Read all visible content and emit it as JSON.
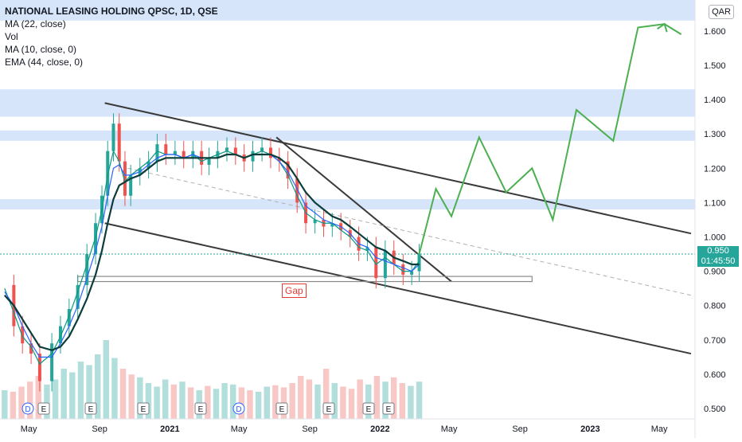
{
  "legend": {
    "title": "NATIONAL LEASING HOLDING QPSC, 1D, QSE",
    "items": [
      "MA (22, close)",
      "Vol",
      "MA (10, close, 0)",
      "EMA (44, close, 0)"
    ]
  },
  "currency": "QAR",
  "last_price": "0.950",
  "countdown": "01:45:50",
  "gap_label": "Gap",
  "event_markers": [
    "D",
    "E",
    "E",
    "E",
    "E",
    "D",
    "E",
    "E",
    "E",
    "E"
  ],
  "colors": {
    "up": "#26a69a",
    "down": "#ef5350",
    "ma22": "#2962ff",
    "ma10": "#089981",
    "ema44": "#0b3d3a",
    "trendline": "#3a3a3a",
    "projection": "#4caf50",
    "zone": "#cfe0f8",
    "price_line": "#26a69a",
    "gap": "#e53935"
  },
  "chart_data": {
    "type": "line",
    "title": "NATIONAL LEASING HOLDING QPSC, 1D, QSE",
    "xlabel": "",
    "ylabel": "QAR",
    "ylim": [
      0.47,
      1.69
    ],
    "x_ticks": [
      "May",
      "Sep",
      "2021",
      "May",
      "Sep",
      "2022",
      "May",
      "Sep",
      "2023",
      "May"
    ],
    "y_ticks": [
      "1.600",
      "1.500",
      "1.400",
      "1.300",
      "1.200",
      "1.100",
      "1.000",
      "0.900",
      "0.800",
      "0.700",
      "0.600",
      "0.500"
    ],
    "price_series": {
      "name": "Close",
      "x": [
        "2020-03-20",
        "2020-04-05",
        "2020-04-20",
        "2020-05-05",
        "2020-05-20",
        "2020-06-10",
        "2020-06-25",
        "2020-07-10",
        "2020-07-25",
        "2020-08-10",
        "2020-08-25",
        "2020-09-05",
        "2020-09-15",
        "2020-09-25",
        "2020-10-05",
        "2020-10-15",
        "2020-10-25",
        "2020-11-10",
        "2020-11-25",
        "2020-12-10",
        "2020-12-25",
        "2021-01-10",
        "2021-01-25",
        "2021-02-10",
        "2021-02-25",
        "2021-03-10",
        "2021-03-25",
        "2021-04-10",
        "2021-04-25",
        "2021-05-10",
        "2021-05-25",
        "2021-06-10",
        "2021-06-25",
        "2021-07-10",
        "2021-07-25",
        "2021-08-10",
        "2021-08-25",
        "2021-09-10",
        "2021-09-25",
        "2021-10-10",
        "2021-10-25",
        "2021-11-10",
        "2021-11-25",
        "2021-12-10",
        "2021-12-25",
        "2022-01-10",
        "2022-01-25",
        "2022-02-10",
        "2022-02-25",
        "2022-03-10"
      ],
      "y": [
        0.86,
        0.74,
        0.69,
        0.66,
        0.58,
        0.69,
        0.74,
        0.79,
        0.86,
        0.95,
        1.04,
        1.12,
        1.25,
        1.33,
        1.22,
        1.12,
        1.18,
        1.2,
        1.22,
        1.27,
        1.24,
        1.25,
        1.23,
        1.25,
        1.21,
        1.23,
        1.25,
        1.26,
        1.24,
        1.22,
        1.25,
        1.26,
        1.23,
        1.22,
        1.17,
        1.1,
        1.04,
        1.05,
        1.03,
        1.04,
        1.02,
        1.0,
        0.96,
        0.97,
        0.88,
        0.96,
        0.92,
        0.89,
        0.9,
        0.95
      ]
    },
    "ma10": {
      "name": "MA (10, close, 0)",
      "y": [
        0.85,
        0.78,
        0.71,
        0.68,
        0.63,
        0.66,
        0.71,
        0.77,
        0.84,
        0.92,
        1.0,
        1.08,
        1.18,
        1.25,
        1.22,
        1.16,
        1.18,
        1.2,
        1.22,
        1.25,
        1.24,
        1.24,
        1.23,
        1.24,
        1.22,
        1.23,
        1.24,
        1.25,
        1.24,
        1.23,
        1.24,
        1.25,
        1.24,
        1.22,
        1.18,
        1.12,
        1.07,
        1.05,
        1.04,
        1.04,
        1.02,
        1.0,
        0.97,
        0.96,
        0.92,
        0.94,
        0.92,
        0.9,
        0.9,
        0.93
      ]
    },
    "ma22": {
      "name": "MA (22, close)",
      "y": [
        0.84,
        0.8,
        0.74,
        0.69,
        0.65,
        0.65,
        0.69,
        0.74,
        0.8,
        0.88,
        0.96,
        1.03,
        1.12,
        1.2,
        1.21,
        1.18,
        1.18,
        1.19,
        1.21,
        1.23,
        1.24,
        1.24,
        1.23,
        1.24,
        1.23,
        1.23,
        1.23,
        1.24,
        1.24,
        1.23,
        1.24,
        1.24,
        1.24,
        1.22,
        1.19,
        1.14,
        1.09,
        1.07,
        1.05,
        1.04,
        1.03,
        1.01,
        0.98,
        0.97,
        0.94,
        0.93,
        0.92,
        0.91,
        0.9,
        0.92
      ]
    },
    "ema44": {
      "name": "EMA (44, close, 0)",
      "y": [
        0.83,
        0.8,
        0.76,
        0.72,
        0.68,
        0.67,
        0.68,
        0.71,
        0.76,
        0.82,
        0.89,
        0.96,
        1.04,
        1.11,
        1.15,
        1.16,
        1.17,
        1.18,
        1.2,
        1.22,
        1.23,
        1.23,
        1.23,
        1.23,
        1.23,
        1.23,
        1.23,
        1.24,
        1.24,
        1.23,
        1.24,
        1.24,
        1.24,
        1.23,
        1.21,
        1.17,
        1.13,
        1.1,
        1.08,
        1.06,
        1.05,
        1.03,
        1.01,
        0.99,
        0.97,
        0.96,
        0.94,
        0.93,
        0.92,
        0.92
      ]
    },
    "projection": {
      "name": "",
      "x": [
        "2022-03-10",
        "2022-04-08",
        "2022-05-05",
        "2022-06-22",
        "2022-08-08",
        "2022-09-22",
        "2022-10-28",
        "2022-12-08",
        "2023-02-10",
        "2023-03-25",
        "2023-05-10",
        "2023-06-08"
      ],
      "y": [
        0.95,
        1.14,
        1.06,
        1.29,
        1.13,
        1.2,
        1.05,
        1.37,
        1.28,
        1.61,
        1.62,
        1.59
      ]
    },
    "trendlines": [
      {
        "from": [
          "2020-09-10",
          1.39
        ],
        "to": [
          "2023-06-25",
          1.01
        ]
      },
      {
        "from": [
          "2020-09-10",
          1.04
        ],
        "to": [
          "2023-06-25",
          0.66
        ]
      },
      {
        "from": [
          "2021-07-05",
          1.29
        ],
        "to": [
          "2022-05-05",
          0.87
        ]
      },
      {
        "from": [
          "2020-10-20",
          1.2
        ],
        "to": [
          "2023-06-25",
          0.83
        ],
        "dashed": true
      }
    ],
    "zones": [
      [
        1.63,
        1.69
      ],
      [
        1.35,
        1.43
      ],
      [
        1.28,
        1.31
      ],
      [
        1.08,
        1.11
      ]
    ],
    "gap_box": {
      "from": "2020-07-25",
      "to": "2022-09-22",
      "y1": 0.87,
      "y2": 0.885
    },
    "price_line": 0.95,
    "volume": [
      40,
      38,
      45,
      52,
      60,
      48,
      55,
      70,
      65,
      80,
      75,
      90,
      110,
      85,
      70,
      62,
      58,
      50,
      45,
      55,
      48,
      52,
      44,
      40,
      46,
      42,
      50,
      48,
      44,
      40,
      38,
      45,
      47,
      44,
      50,
      60,
      55,
      48,
      70,
      50,
      45,
      42,
      55,
      48,
      60,
      52,
      58,
      50,
      46,
      52
    ]
  }
}
